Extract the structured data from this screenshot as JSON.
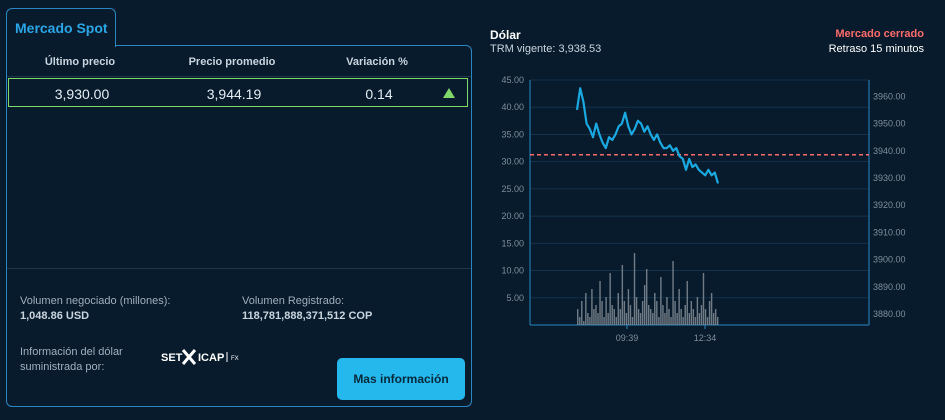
{
  "spot": {
    "tab_title": "Mercado Spot",
    "columns": [
      "Último precio",
      "Precio promedio",
      "Variación %"
    ],
    "row": {
      "last_price": "3,930.00",
      "avg_price": "3,944.19",
      "variation": "0.14",
      "trend_icon": "triangle-up-icon"
    },
    "volume_label": "Volumen negociado (millones):",
    "volume_value": "1,048.86 USD",
    "registered_label": "Volumen Registrado:",
    "registered_value": "118,781,888,371,512 COP",
    "info_label_1": "Información del dólar",
    "info_label_2": "suministrada por:",
    "provider_logo": {
      "part1": "SET",
      "part2": "ICAP",
      "part3": "FX"
    },
    "more_button": "Mas información"
  },
  "chart_header": {
    "title": "Dólar",
    "trm": "TRM vigente: 3,938.53",
    "market_status": "Mercado cerrado",
    "delay": "Retraso 15 minutos"
  },
  "colors": {
    "accent": "#25b8ec",
    "line": "#1aa9e0",
    "reference": "#ff6b6b",
    "up": "#7fd86a"
  },
  "chart_data": {
    "type": "line",
    "x_ticks": [
      "09:39",
      "12:34"
    ],
    "y_left_ticks": [
      45,
      40,
      35,
      30,
      25,
      20,
      15,
      10,
      5
    ],
    "y_left_range": [
      0,
      45
    ],
    "y_right_ticks": [
      3960,
      3950,
      3940,
      3930,
      3920,
      3910,
      3900,
      3890,
      3880
    ],
    "y_right_range": [
      3876,
      3966
    ],
    "reference_line": 3938.53,
    "price_series": [
      3955,
      3963,
      3958,
      3950,
      3948,
      3945,
      3950,
      3946,
      3943,
      3941,
      3945,
      3944,
      3946,
      3949,
      3950,
      3954,
      3949,
      3946,
      3948,
      3951,
      3950,
      3947,
      3949,
      3946,
      3944,
      3946,
      3943,
      3941,
      3941,
      3942,
      3940,
      3941,
      3938,
      3937,
      3933,
      3937,
      3934,
      3935,
      3933,
      3932,
      3931,
      3933,
      3931,
      3932,
      3928
    ],
    "volume_series": [
      4,
      2,
      6,
      1,
      8,
      3,
      2,
      9,
      4,
      5,
      3,
      11,
      6,
      2,
      7,
      3,
      13,
      5,
      4,
      2,
      8,
      4,
      15,
      6,
      3,
      9,
      5,
      2,
      18,
      7,
      4,
      3,
      6,
      10,
      14,
      5,
      4,
      3,
      8,
      6,
      2,
      12,
      5,
      3,
      7,
      4,
      2,
      16,
      6,
      3,
      9,
      4,
      2,
      5,
      11,
      3,
      6,
      4,
      2,
      7,
      3,
      5,
      13,
      4,
      2,
      6,
      8,
      3,
      4,
      2
    ]
  }
}
